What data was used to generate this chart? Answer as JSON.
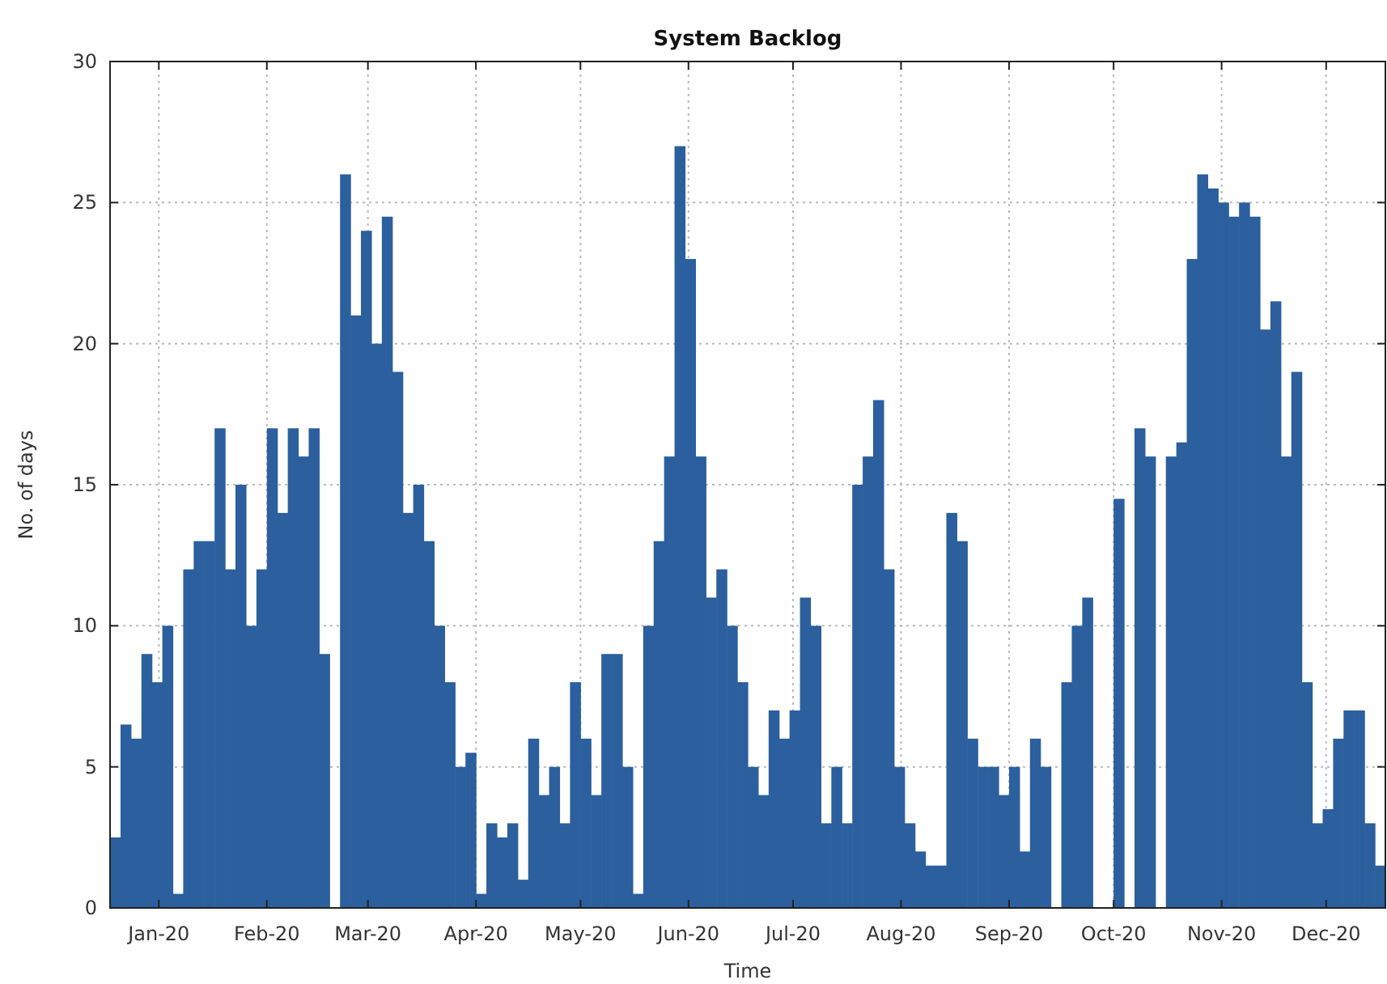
{
  "chart_data": {
    "type": "bar",
    "title": "System Backlog",
    "xlabel": "Time",
    "ylabel": "No. of days",
    "x": [
      "2019-12-18",
      "2019-12-21",
      "2019-12-24",
      "2019-12-27",
      "2019-12-30",
      "2020-01-02",
      "2020-01-05",
      "2020-01-08",
      "2020-01-11",
      "2020-01-14",
      "2020-01-17",
      "2020-01-20",
      "2020-01-23",
      "2020-01-26",
      "2020-01-29",
      "2020-02-01",
      "2020-02-04",
      "2020-02-07",
      "2020-02-10",
      "2020-02-13",
      "2020-02-16",
      "2020-02-19",
      "2020-02-22",
      "2020-02-25",
      "2020-02-28",
      "2020-03-02",
      "2020-03-05",
      "2020-03-08",
      "2020-03-11",
      "2020-03-14",
      "2020-03-17",
      "2020-03-20",
      "2020-03-23",
      "2020-03-26",
      "2020-03-29",
      "2020-04-01",
      "2020-04-04",
      "2020-04-07",
      "2020-04-10",
      "2020-04-13",
      "2020-04-16",
      "2020-04-19",
      "2020-04-22",
      "2020-04-25",
      "2020-04-28",
      "2020-05-01",
      "2020-05-04",
      "2020-05-07",
      "2020-05-10",
      "2020-05-13",
      "2020-05-16",
      "2020-05-19",
      "2020-05-22",
      "2020-05-25",
      "2020-05-28",
      "2020-05-31",
      "2020-06-03",
      "2020-06-06",
      "2020-06-09",
      "2020-06-12",
      "2020-06-15",
      "2020-06-18",
      "2020-06-21",
      "2020-06-24",
      "2020-06-27",
      "2020-06-30",
      "2020-07-03",
      "2020-07-06",
      "2020-07-09",
      "2020-07-12",
      "2020-07-15",
      "2020-07-18",
      "2020-07-21",
      "2020-07-24",
      "2020-07-27",
      "2020-07-30",
      "2020-08-02",
      "2020-08-05",
      "2020-08-08",
      "2020-08-11",
      "2020-08-14",
      "2020-08-17",
      "2020-08-20",
      "2020-08-23",
      "2020-08-26",
      "2020-08-29",
      "2020-09-01",
      "2020-09-04",
      "2020-09-07",
      "2020-09-10",
      "2020-09-13",
      "2020-09-16",
      "2020-09-19",
      "2020-09-22",
      "2020-09-25",
      "2020-09-28",
      "2020-10-01",
      "2020-10-04",
      "2020-10-07",
      "2020-10-10",
      "2020-10-13",
      "2020-10-16",
      "2020-10-19",
      "2020-10-22",
      "2020-10-25",
      "2020-10-28",
      "2020-10-31",
      "2020-11-03",
      "2020-11-06",
      "2020-11-09",
      "2020-11-12",
      "2020-11-15",
      "2020-11-18",
      "2020-11-21",
      "2020-11-24",
      "2020-11-27",
      "2020-11-30",
      "2020-12-03",
      "2020-12-06",
      "2020-12-09",
      "2020-12-12",
      "2020-12-15"
    ],
    "series": [
      {
        "color": "#2b5f9e",
        "values": [
          2.5,
          6.5,
          6,
          9,
          8,
          10,
          0.5,
          12,
          13,
          13,
          17,
          12,
          15,
          10,
          12,
          17,
          14,
          17,
          16,
          17,
          9,
          0,
          26,
          21,
          24,
          20,
          24.5,
          19,
          14,
          15,
          13,
          10,
          8,
          5,
          5.5,
          0.5,
          3,
          2.5,
          3,
          1,
          6,
          4,
          5,
          3,
          8,
          6,
          4,
          9,
          9,
          5,
          0.5,
          10,
          13,
          16,
          27,
          23,
          16,
          11,
          12,
          10,
          8,
          5,
          4,
          7,
          6,
          7,
          11,
          10,
          3,
          5,
          3,
          15,
          16,
          18,
          12,
          5,
          3,
          2,
          1.5,
          1.5,
          14,
          13,
          6,
          5,
          5,
          4,
          5,
          2,
          6,
          5,
          0,
          8,
          10,
          11,
          0,
          0,
          14.5,
          0,
          17,
          16,
          0,
          16,
          16.5,
          23,
          26,
          25.5,
          25,
          24.5,
          25,
          24.5,
          20.5,
          21.5,
          16,
          19,
          8,
          3,
          3.5,
          6,
          7,
          7,
          3,
          1.5
        ]
      }
    ],
    "xlim": [
      "2019-12-18",
      "2020-12-18"
    ],
    "xticks": [
      {
        "value": "2020-01-01",
        "label": "Jan-20"
      },
      {
        "value": "2020-02-01",
        "label": "Feb-20"
      },
      {
        "value": "2020-03-01",
        "label": "Mar-20"
      },
      {
        "value": "2020-04-01",
        "label": "Apr-20"
      },
      {
        "value": "2020-05-01",
        "label": "May-20"
      },
      {
        "value": "2020-06-01",
        "label": "Jun-20"
      },
      {
        "value": "2020-07-01",
        "label": "Jul-20"
      },
      {
        "value": "2020-08-01",
        "label": "Aug-20"
      },
      {
        "value": "2020-09-01",
        "label": "Sep-20"
      },
      {
        "value": "2020-10-01",
        "label": "Oct-20"
      },
      {
        "value": "2020-11-01",
        "label": "Nov-20"
      },
      {
        "value": "2020-12-01",
        "label": "Dec-20"
      }
    ],
    "ylim": [
      0,
      30
    ],
    "yticks": [
      0,
      5,
      10,
      15,
      20,
      25,
      30
    ],
    "grid": true
  }
}
